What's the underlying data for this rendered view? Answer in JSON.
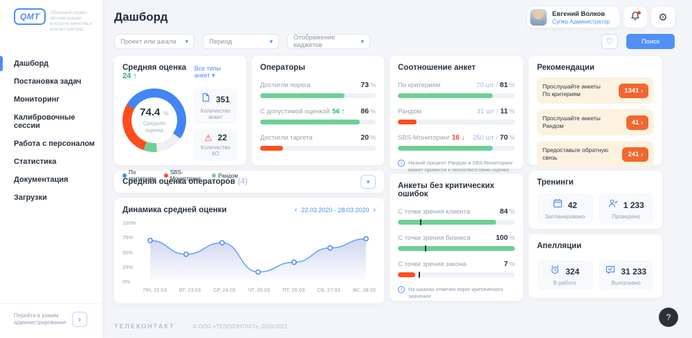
{
  "app": {
    "logo": "QMT",
    "tagline": "Облачный сервис автоматизации контроля качества в контакт-центрах",
    "footer_brand": "ТЕЛЕКОНТАКТ",
    "footer_copyright": "© ООО «ТЕЛЕКОНТАКТ», 2019-2021"
  },
  "icons": {
    "dropdown_chevron": "▾",
    "collapse_chevron": "▾",
    "heart": "♡",
    "gear": "⚙",
    "up_arrow": "↑",
    "down_arrow": "↓",
    "prev": "‹",
    "next": "›",
    "warning": "⚠",
    "info": "i",
    "help": "?",
    "slash": "/",
    "percent": "%"
  },
  "sidebar": {
    "items": [
      {
        "label": "Дашборд",
        "active": true
      },
      {
        "label": "Постановка задач",
        "active": false
      },
      {
        "label": "Мониторинг",
        "active": false
      },
      {
        "label": "Калибровочные сессии",
        "active": false
      },
      {
        "label": "Работа с персоналом",
        "active": false
      },
      {
        "label": "Статистика",
        "active": false
      },
      {
        "label": "Документация",
        "active": false
      },
      {
        "label": "Загрузки",
        "active": false
      }
    ],
    "admin_link": "Перейти в режим администрирования"
  },
  "header": {
    "title": "Дашборд",
    "user": {
      "name": "Евгений Волков",
      "role": "Супер Администратор"
    }
  },
  "filters": {
    "project": "Проект или шкала",
    "period": "Период",
    "widgets": "Отображение виджетов",
    "search": "Поиск"
  },
  "cards": {
    "avg_score": {
      "title": "Средняя оценка",
      "delta": "24",
      "link": "Все типы анкет",
      "value": "74.4",
      "center_label": "Средняя оценка",
      "stats": [
        {
          "value": "351",
          "label": "Количество анкет"
        },
        {
          "value": "22",
          "label": "Количество КО"
        }
      ],
      "legend": [
        {
          "label": "По критериям",
          "color": "#4285f4"
        },
        {
          "label": "SBS-Мониторинг",
          "color": "#ff4d1c"
        },
        {
          "label": "Рандом",
          "color": "#6fcf97"
        }
      ]
    },
    "operators": {
      "title": "Операторы",
      "rows": [
        {
          "label": "Достигли порога",
          "value": 73,
          "bar": 73,
          "color": "#6fcf97"
        },
        {
          "label": "С допустимой оценкой",
          "delta": "56",
          "value": 86,
          "bar": 86,
          "color": "#6fcf97"
        },
        {
          "label": "Достигли таргета",
          "value": 20,
          "bar": 20,
          "color": "#ff4d1c"
        }
      ]
    },
    "ratio": {
      "title": "Соотношение анкет",
      "rows": [
        {
          "label": "По критериям",
          "count": "70 шт",
          "value": 81,
          "bar": 81,
          "color": "#6fcf97"
        },
        {
          "label": "Рандом",
          "count": "31 шт",
          "value": 11,
          "bar": 16,
          "color": "#ff4d1c"
        },
        {
          "label": "SBS-Мониторинг",
          "delta": "16",
          "count": "250 шт",
          "value": 70,
          "bar": 81,
          "color": "#6fcf97"
        }
      ],
      "note": "Низкий процент Рандом и SBS-Мониторинг может привести к несоответствию оценки"
    },
    "operators_avg": {
      "title": "Средняя оценка операторов",
      "count": "(4)"
    },
    "dynamics": {
      "title": "Динамика средней оценки",
      "date_range": "22.03.2020 - 28.03.2020"
    },
    "no_critical": {
      "title": "Анкеты без критических ошибок",
      "rows": [
        {
          "label": "С точки зрения клиента",
          "value": 84,
          "bar": 84,
          "tick": 19,
          "color": "#6fcf97"
        },
        {
          "label": "С точки зрения бизнеса",
          "value": 100,
          "bar": 100,
          "tick": 23,
          "color": "#6fcf97"
        },
        {
          "label": "С точки зрения закона",
          "value": 7,
          "bar": 15,
          "tick": 18,
          "color": "#ff4d1c"
        }
      ],
      "note": "На шкалах отмечен порог критического значения"
    },
    "recommendations": {
      "title": "Рекомендации",
      "items": [
        {
          "line1": "Прослушайте анкеты",
          "line2": "По критериям",
          "count": "1341"
        },
        {
          "line1": "Прослушайте анкеты",
          "line2": "Рандом",
          "count": "41"
        },
        {
          "line1": "Предоставьте обратную",
          "line2": "связь",
          "count": "241"
        }
      ]
    },
    "trainings": {
      "title": "Тренинги",
      "stats": [
        {
          "value": "42",
          "label": "Запланировано"
        },
        {
          "value": "1 233",
          "label": "Проведено"
        }
      ]
    },
    "appeals": {
      "title": "Апелляции",
      "stats": [
        {
          "value": "324",
          "label": "В работе"
        },
        {
          "value": "31 233",
          "label": "Выполнено"
        }
      ]
    }
  },
  "chart_data": [
    {
      "type": "pie",
      "title": "Средняя оценка",
      "center_value": 74.4,
      "start_deg": 300,
      "segments": [
        {
          "label": "По критериям",
          "color": "#4285f4",
          "deg": 185
        },
        {
          "label": "остаток шкалы",
          "color": "#edf0f5",
          "deg": 50
        },
        {
          "label": "Рандом",
          "color": "#6fcf97",
          "deg": 25
        },
        {
          "label": "SBS-Мониторинг",
          "color": "#ff4d1c",
          "deg": 100
        }
      ]
    },
    {
      "type": "line",
      "title": "Динамика средней оценки",
      "x": [
        "ПН, 22.03",
        "ВТ, 23.03",
        "СР, 24.03",
        "ЧТ, 25.03",
        "ПТ, 26.03",
        "СБ, 27.03",
        "ВС, 28.03"
      ],
      "y": [
        70,
        46,
        66,
        15,
        32,
        57,
        73
      ],
      "y_ticks": [
        "100%",
        "75%",
        "50%",
        "25%",
        "0%"
      ],
      "ylim": [
        0,
        100
      ],
      "grid": false,
      "legend_position": "none"
    }
  ]
}
